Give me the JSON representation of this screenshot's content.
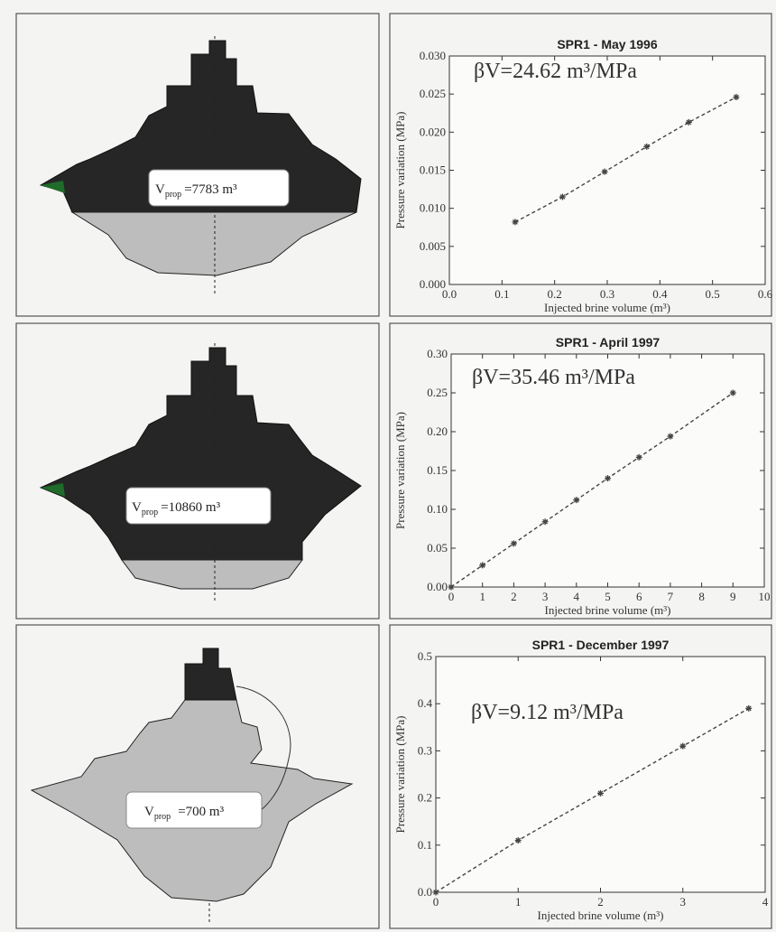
{
  "caverns": [
    {
      "symbol": "V",
      "subscript": "prop",
      "value": "=7783 m³"
    },
    {
      "symbol": "V",
      "subscript": "prop",
      "value": "=10860 m³"
    },
    {
      "symbol": "V",
      "subscript": "prop",
      "value": "=700 m³"
    }
  ],
  "chart_data": [
    {
      "type": "line",
      "title": "SPR1 - May 1996",
      "annotation": "βV=24.62 m³/MPa",
      "x_label": "Injected brine volume (m³)",
      "y_label": "Pressure variation (MPa)",
      "x": [
        0.125,
        0.215,
        0.295,
        0.375,
        0.455,
        0.545
      ],
      "values": [
        0.0082,
        0.0115,
        0.0148,
        0.0181,
        0.0213,
        0.0246
      ],
      "color": "#444444",
      "xlim": [
        0,
        0.6
      ],
      "xticks": [
        {
          "value": 0,
          "label": "0.0"
        },
        0.1,
        0.2,
        0.3,
        0.4,
        0.5,
        0.6
      ],
      "ylim": [
        0,
        0.03
      ],
      "yticks": [
        {
          "value": 0,
          "label": "0.000"
        },
        0.005,
        {
          "value": 0.01,
          "label": "0.010"
        },
        0.015,
        {
          "value": 0.02,
          "label": "0.020"
        },
        0.025,
        {
          "value": 0.03,
          "label": "0.030"
        }
      ]
    },
    {
      "type": "line",
      "title": "SPR1 - April 1997",
      "annotation": "βV=35.46 m³/MPa",
      "x_label": "Injected brine volume (m³)",
      "y_label": "Pressure variation (MPa)",
      "x": [
        0,
        1,
        2,
        3,
        4,
        5,
        6,
        7,
        9
      ],
      "values": [
        0,
        0.028,
        0.056,
        0.084,
        0.112,
        0.14,
        0.167,
        0.194,
        0.25
      ],
      "color": "#444444",
      "xlim": [
        0,
        10
      ],
      "xticks": [
        0,
        1,
        2,
        3,
        4,
        5,
        6,
        7,
        8,
        9,
        10
      ],
      "ylim": [
        0,
        0.3
      ],
      "yticks": [
        {
          "value": 0,
          "label": "0.00"
        },
        0.05,
        {
          "value": 0.1,
          "label": "0.10"
        },
        0.15,
        {
          "value": 0.2,
          "label": "0.20"
        },
        0.25,
        {
          "value": 0.3,
          "label": "0.30"
        }
      ]
    },
    {
      "type": "line",
      "title": "SPR1 - December 1997",
      "annotation": "βV=9.12 m³/MPa",
      "x_label": "Injected brine volume (m³)",
      "y_label": "Pressure variation (MPa)",
      "x": [
        0,
        1,
        2,
        3,
        3.8
      ],
      "values": [
        0,
        0.11,
        0.21,
        0.31,
        0.39
      ],
      "color": "#444444",
      "xlim": [
        0,
        4
      ],
      "xticks": [
        0,
        1,
        2,
        3,
        4
      ],
      "ylim": [
        0,
        0.5
      ],
      "yticks": [
        {
          "value": 0,
          "label": "0.0"
        },
        0.1,
        0.2,
        0.3,
        0.4,
        0.5
      ]
    }
  ]
}
